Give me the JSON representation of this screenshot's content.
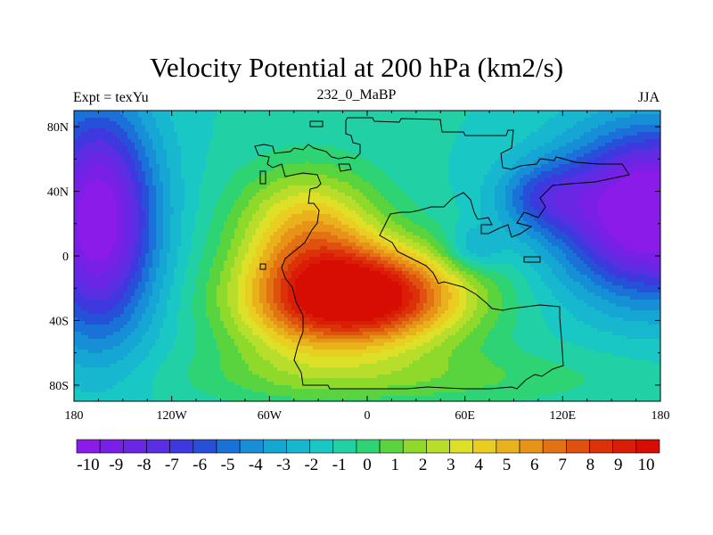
{
  "header": {
    "title": "Velocity Potential at 200 hPa (km2/s)",
    "left_label": "Expt = texYu",
    "center_label": "232_0_MaBP",
    "right_label": "JJA"
  },
  "map": {
    "lon_ticks": [
      "180",
      "120W",
      "60W",
      "0",
      "60E",
      "120E",
      "180"
    ],
    "lat_ticks": [
      "80N",
      "40N",
      "0",
      "40S",
      "80S"
    ],
    "lon_range": [
      -180,
      180
    ],
    "lat_range": [
      -90,
      90
    ],
    "field_range": [
      -10,
      10
    ]
  },
  "colorbar": {
    "labels": [
      "-10",
      "-9",
      "-8",
      "-7",
      "-6",
      "-5",
      "-4",
      "-3",
      "-2",
      "-1",
      "0",
      "1",
      "2",
      "3",
      "4",
      "5",
      "6",
      "7",
      "8",
      "9",
      "10"
    ],
    "colors": [
      "#8a1be8",
      "#7a20e6",
      "#6a26e4",
      "#5a2ee2",
      "#3e39de",
      "#2650d8",
      "#1a72d8",
      "#178fd6",
      "#16a6d3",
      "#17b8cf",
      "#19c7c5",
      "#22d0a5",
      "#2ed474",
      "#5ad43e",
      "#8fd92b",
      "#b8dd2a",
      "#dde026",
      "#e9cd21",
      "#e9b21c",
      "#e69317",
      "#e37212",
      "#df510e",
      "#dc320a",
      "#da1d06",
      "#d70d03"
    ]
  }
}
